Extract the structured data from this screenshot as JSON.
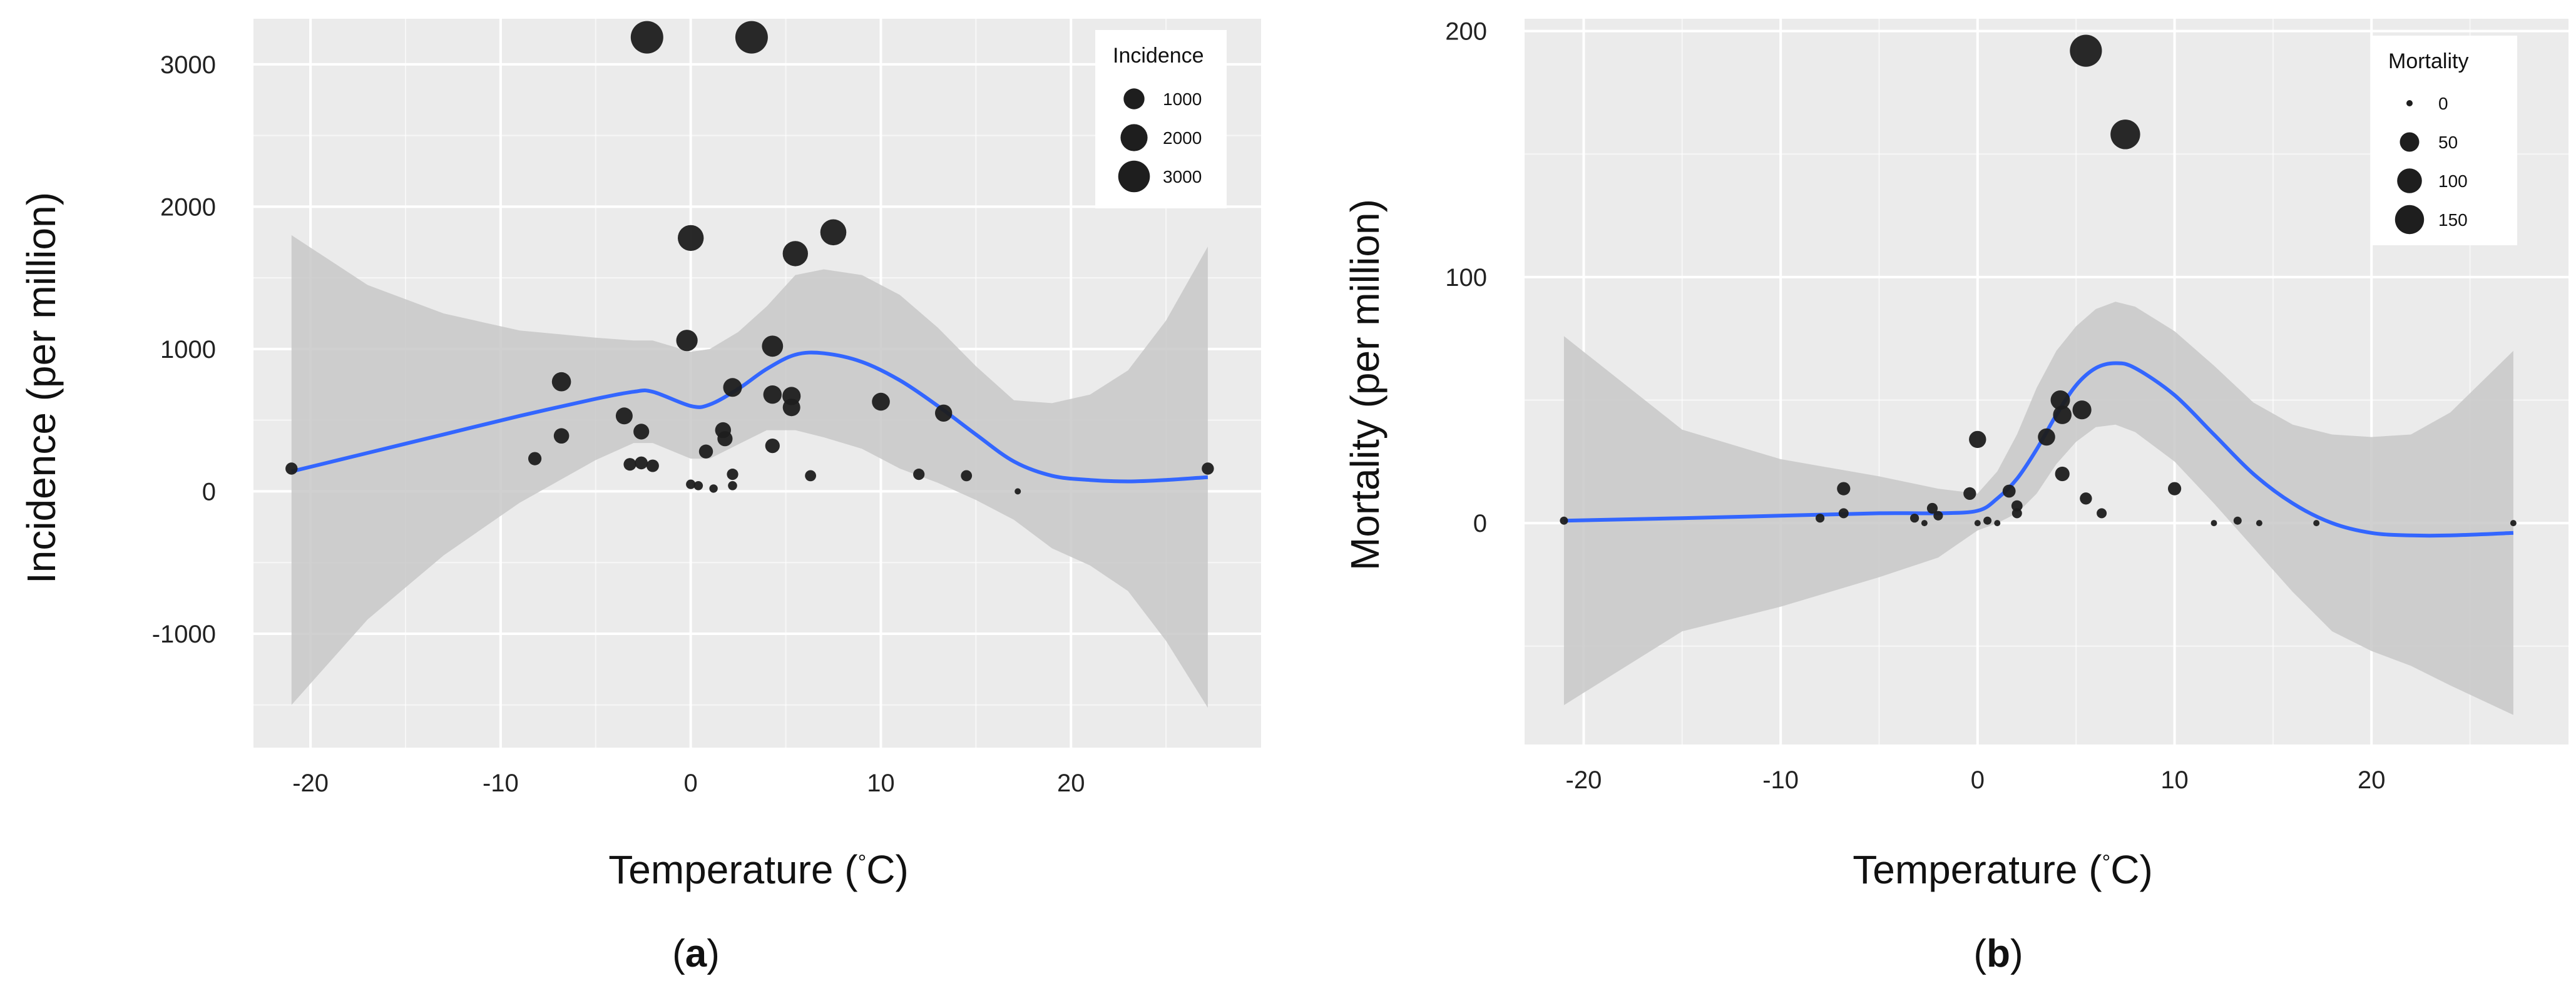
{
  "panel_labels": [
    "a",
    "b"
  ],
  "chart_data": [
    {
      "type": "scatter",
      "id": "incidence",
      "panel_label": "a",
      "xlabel_main": "Temperature (",
      "xlabel_unit": "°",
      "xlabel_end": "C)",
      "ylabel": "Incidence (per million)",
      "xlim": [
        -23,
        30
      ],
      "ylim": [
        -1800,
        3320
      ],
      "x_ticks": [
        -20,
        -10,
        0,
        10,
        20
      ],
      "x_tick_labels": [
        "-20",
        "-10",
        "0",
        "10",
        "20"
      ],
      "x_minor_ticks": [
        -15,
        -5,
        5,
        15,
        25
      ],
      "y_ticks": [
        -1000,
        0,
        1000,
        2000,
        3000
      ],
      "y_tick_labels": [
        "-1000",
        "0",
        "1000",
        "2000",
        "3000"
      ],
      "y_minor_ticks": [
        -1500,
        -500,
        500,
        1500,
        2500
      ],
      "grid": true,
      "legend": {
        "title": "Incidence",
        "position": "top-right",
        "entries": [
          {
            "label": "1000",
            "value": 1000
          },
          {
            "label": "2000",
            "value": 2000
          },
          {
            "label": "3000",
            "value": 3000
          }
        ]
      },
      "size_range": [
        0,
        3200
      ],
      "points": [
        {
          "x": -21,
          "y": 160,
          "s": 160
        },
        {
          "x": -8.2,
          "y": 230,
          "s": 230
        },
        {
          "x": -6.8,
          "y": 770,
          "s": 770
        },
        {
          "x": -6.8,
          "y": 390,
          "s": 390
        },
        {
          "x": -3.5,
          "y": 530,
          "s": 530
        },
        {
          "x": -3.2,
          "y": 190,
          "s": 190
        },
        {
          "x": -2.6,
          "y": 420,
          "s": 420
        },
        {
          "x": -2.6,
          "y": 200,
          "s": 200
        },
        {
          "x": -2.0,
          "y": 180,
          "s": 180
        },
        {
          "x": -2.3,
          "y": 3190,
          "s": 3190
        },
        {
          "x": 3.2,
          "y": 3190,
          "s": 3190
        },
        {
          "x": -0.2,
          "y": 1060,
          "s": 1060
        },
        {
          "x": 0,
          "y": 1780,
          "s": 1780
        },
        {
          "x": 0,
          "y": 50,
          "s": 50
        },
        {
          "x": 0.4,
          "y": 40,
          "s": 40
        },
        {
          "x": 0.8,
          "y": 280,
          "s": 280
        },
        {
          "x": 1.2,
          "y": 20,
          "s": 20
        },
        {
          "x": 1.7,
          "y": 430,
          "s": 430
        },
        {
          "x": 1.8,
          "y": 370,
          "s": 370
        },
        {
          "x": 2.2,
          "y": 730,
          "s": 730
        },
        {
          "x": 2.2,
          "y": 120,
          "s": 120
        },
        {
          "x": 2.2,
          "y": 40,
          "s": 40
        },
        {
          "x": 4.3,
          "y": 1020,
          "s": 1020
        },
        {
          "x": 4.3,
          "y": 680,
          "s": 680
        },
        {
          "x": 4.3,
          "y": 320,
          "s": 320
        },
        {
          "x": 5.3,
          "y": 670,
          "s": 670
        },
        {
          "x": 5.3,
          "y": 590,
          "s": 590
        },
        {
          "x": 5.5,
          "y": 1670,
          "s": 1670
        },
        {
          "x": 6.3,
          "y": 110,
          "s": 110
        },
        {
          "x": 7.5,
          "y": 1820,
          "s": 1820
        },
        {
          "x": 10.0,
          "y": 630,
          "s": 630
        },
        {
          "x": 12.0,
          "y": 120,
          "s": 120
        },
        {
          "x": 13.3,
          "y": 550,
          "s": 550
        },
        {
          "x": 14.5,
          "y": 110,
          "s": 110
        },
        {
          "x": 17.2,
          "y": 0,
          "s": 0
        },
        {
          "x": 27.2,
          "y": 160,
          "s": 160
        }
      ],
      "smooth_line": {
        "x": [
          -21,
          -17,
          -13,
          -9,
          -5,
          -3,
          -2,
          0,
          1,
          2.5,
          4,
          5.5,
          7,
          9,
          11,
          13,
          15,
          17,
          19,
          21,
          23,
          25,
          27.2
        ],
        "y": [
          140,
          270,
          400,
          530,
          650,
          700,
          700,
          600,
          610,
          720,
          860,
          960,
          970,
          910,
          780,
          600,
          400,
          210,
          110,
          80,
          70,
          80,
          100
        ]
      },
      "ci_upper": {
        "x": [
          -21,
          -17,
          -13,
          -9,
          -5,
          -3,
          -2,
          0,
          1,
          2.5,
          4,
          5.5,
          7,
          9,
          11,
          13,
          15,
          17,
          19,
          21,
          23,
          25,
          27.2
        ],
        "y": [
          1800,
          1450,
          1250,
          1130,
          1080,
          1060,
          1060,
          980,
          1000,
          1120,
          1300,
          1520,
          1560,
          1520,
          1380,
          1150,
          880,
          640,
          620,
          680,
          850,
          1200,
          1720
        ]
      },
      "ci_lower": {
        "x": [
          -21,
          -17,
          -13,
          -9,
          -5,
          -3,
          -2,
          0,
          1,
          2.5,
          4,
          5.5,
          7,
          9,
          11,
          13,
          15,
          17,
          19,
          21,
          23,
          25,
          27.2
        ],
        "y": [
          -1500,
          -900,
          -450,
          -80,
          220,
          340,
          340,
          230,
          230,
          330,
          430,
          430,
          380,
          300,
          160,
          60,
          -60,
          -200,
          -400,
          -520,
          -700,
          -1050,
          -1520
        ]
      }
    },
    {
      "type": "scatter",
      "id": "mortality",
      "panel_label": "b",
      "xlabel_main": "Temperature (",
      "xlabel_unit": "°",
      "xlabel_end": "C)",
      "ylabel": "Mortality (per million)",
      "xlim": [
        -23,
        30
      ],
      "ylim": [
        -90,
        205
      ],
      "x_ticks": [
        -20,
        -10,
        0,
        10,
        20
      ],
      "x_tick_labels": [
        "-20",
        "-10",
        "0",
        "10",
        "20"
      ],
      "x_minor_ticks": [
        -15,
        -5,
        5,
        15,
        25
      ],
      "y_ticks": [
        0,
        100,
        200
      ],
      "y_tick_labels": [
        "0",
        "100",
        "200"
      ],
      "y_minor_ticks": [
        -50,
        50,
        150
      ],
      "grid": true,
      "legend": {
        "title": "Mortality",
        "position": "top-right",
        "entries": [
          {
            "label": "0",
            "value": 0
          },
          {
            "label": "50",
            "value": 50
          },
          {
            "label": "100",
            "value": 100
          },
          {
            "label": "150",
            "value": 150
          }
        ]
      },
      "size_range": [
        0,
        200
      ],
      "points": [
        {
          "x": -21,
          "y": 1,
          "s": 1
        },
        {
          "x": -8.0,
          "y": 2,
          "s": 2
        },
        {
          "x": -6.8,
          "y": 14,
          "s": 14
        },
        {
          "x": -6.8,
          "y": 4,
          "s": 4
        },
        {
          "x": -3.2,
          "y": 2,
          "s": 2
        },
        {
          "x": -2.7,
          "y": 0,
          "s": 0
        },
        {
          "x": -2.3,
          "y": 6,
          "s": 6
        },
        {
          "x": -2.0,
          "y": 3,
          "s": 3
        },
        {
          "x": -0.4,
          "y": 12,
          "s": 12
        },
        {
          "x": 0,
          "y": 34,
          "s": 34
        },
        {
          "x": 0,
          "y": 0,
          "s": 0
        },
        {
          "x": 0.5,
          "y": 1,
          "s": 1
        },
        {
          "x": 1.0,
          "y": 0,
          "s": 0
        },
        {
          "x": 1.6,
          "y": 13,
          "s": 13
        },
        {
          "x": 2.0,
          "y": 7,
          "s": 7
        },
        {
          "x": 2.0,
          "y": 4,
          "s": 4
        },
        {
          "x": 3.5,
          "y": 35,
          "s": 35
        },
        {
          "x": 4.2,
          "y": 50,
          "s": 50
        },
        {
          "x": 4.3,
          "y": 44,
          "s": 44
        },
        {
          "x": 4.3,
          "y": 20,
          "s": 20
        },
        {
          "x": 5.3,
          "y": 46,
          "s": 46
        },
        {
          "x": 5.5,
          "y": 192,
          "s": 192
        },
        {
          "x": 5.5,
          "y": 10,
          "s": 10
        },
        {
          "x": 6.3,
          "y": 4,
          "s": 4
        },
        {
          "x": 7.5,
          "y": 158,
          "s": 158
        },
        {
          "x": 10.0,
          "y": 14,
          "s": 14
        },
        {
          "x": 12.0,
          "y": 0,
          "s": 0
        },
        {
          "x": 13.2,
          "y": 1,
          "s": 1
        },
        {
          "x": 14.3,
          "y": 0,
          "s": 0
        },
        {
          "x": 17.2,
          "y": 0,
          "s": 0
        },
        {
          "x": 27.2,
          "y": 0,
          "s": 0
        }
      ],
      "smooth_line": {
        "x": [
          -21,
          -15,
          -10,
          -5,
          -2,
          0,
          1,
          2,
          3,
          4,
          5,
          6,
          7,
          8,
          10,
          12,
          14,
          16,
          18,
          20,
          22,
          24,
          27.2
        ],
        "y": [
          1,
          2,
          3,
          4,
          4,
          5,
          10,
          18,
          30,
          44,
          56,
          63,
          65,
          63,
          52,
          36,
          20,
          8,
          0,
          -4,
          -5,
          -5,
          -4
        ]
      },
      "ci_upper": {
        "x": [
          -21,
          -15,
          -10,
          -5,
          -2,
          0,
          1,
          2,
          3,
          4,
          5,
          6,
          7,
          8,
          10,
          12,
          14,
          16,
          18,
          20,
          22,
          24,
          27.2
        ],
        "y": [
          76,
          38,
          26,
          19,
          14,
          12,
          21,
          36,
          55,
          70,
          80,
          87,
          90,
          88,
          78,
          64,
          49,
          40,
          36,
          35,
          36,
          45,
          70
        ]
      },
      "ci_lower": {
        "x": [
          -21,
          -15,
          -10,
          -5,
          -2,
          0,
          1,
          2,
          3,
          4,
          5,
          6,
          7,
          8,
          10,
          12,
          14,
          16,
          18,
          20,
          22,
          24,
          27.2
        ],
        "y": [
          -74,
          -44,
          -34,
          -22,
          -14,
          -3,
          0,
          4,
          12,
          24,
          33,
          39,
          40,
          37,
          25,
          8,
          -10,
          -28,
          -44,
          -52,
          -58,
          -66,
          -78
        ]
      }
    }
  ],
  "colors": {
    "panel_bg": "#ebebeb",
    "grid": "#ffffff",
    "ribbon": "#c8c8c8",
    "line": "#3366ff",
    "point": "#1e1e1e",
    "text": "#111111",
    "tick_text": "#222222"
  }
}
